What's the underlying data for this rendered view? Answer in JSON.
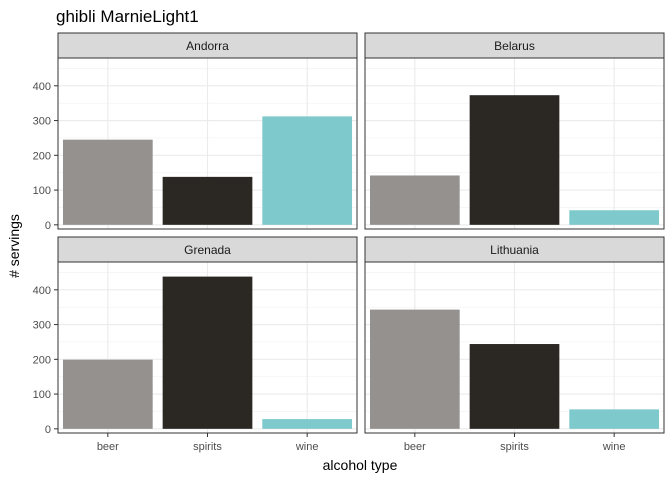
{
  "chart_data": {
    "type": "bar",
    "title": "ghibli MarnieLight1",
    "xlabel": "alcohol type",
    "ylabel": "# servings",
    "categories": [
      "beer",
      "spirits",
      "wine"
    ],
    "colors": {
      "beer": "#95918e",
      "spirits": "#2b2723",
      "wine": "#7ec9cb"
    },
    "ylim": [
      -12,
      480
    ],
    "yticks": [
      0,
      100,
      200,
      300,
      400
    ],
    "grid": true,
    "facet_layout": "2x2",
    "panels": [
      {
        "name": "Andorra",
        "values": [
          245,
          138,
          312
        ]
      },
      {
        "name": "Belarus",
        "values": [
          142,
          373,
          42
        ]
      },
      {
        "name": "Grenada",
        "values": [
          199,
          438,
          28
        ]
      },
      {
        "name": "Lithuania",
        "values": [
          343,
          244,
          56
        ]
      }
    ]
  }
}
